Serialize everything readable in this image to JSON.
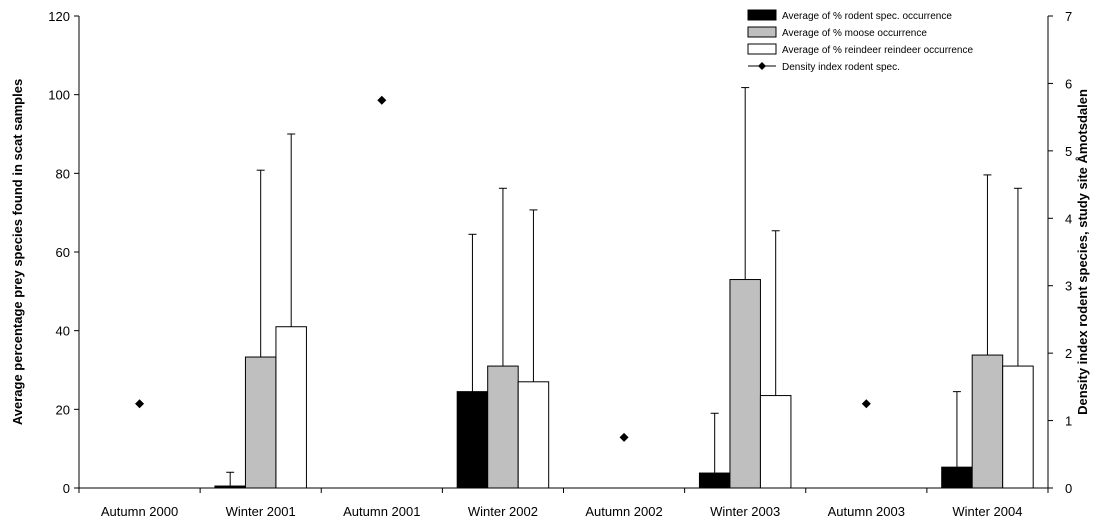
{
  "chart_data": {
    "type": "bar",
    "categories": [
      "Autumn 2000",
      "Winter 2001",
      "Autumn 2001",
      "Winter 2002",
      "Autumn 2002",
      "Winter 2003",
      "Autumn 2003",
      "Winter 2004"
    ],
    "series": [
      {
        "name": "Average of % rodent spec. occurrence",
        "axis": "left",
        "color": "#000000",
        "values": [
          null,
          0.5,
          null,
          24.5,
          null,
          3.8,
          null,
          5.3
        ],
        "error_upper": [
          null,
          4,
          null,
          64.5,
          null,
          19,
          null,
          24.5
        ]
      },
      {
        "name": "Average of % moose occurrence",
        "axis": "left",
        "color": "#bfbfbf",
        "values": [
          null,
          33.3,
          null,
          31,
          null,
          53,
          null,
          33.8
        ],
        "error_upper": [
          null,
          80.8,
          null,
          76.2,
          null,
          101.8,
          null,
          79.6
        ]
      },
      {
        "name": "Average of % reindeer reindeer occurrence",
        "axis": "left",
        "color": "#ffffff",
        "values": [
          null,
          41,
          null,
          27,
          null,
          23.5,
          null,
          31
        ],
        "error_upper": [
          null,
          90,
          null,
          70.7,
          null,
          65.4,
          null,
          76.2
        ]
      },
      {
        "name": "Density index rodent spec.",
        "axis": "right",
        "type": "scatter",
        "marker": "diamond",
        "values": [
          1.25,
          null,
          5.75,
          null,
          0.75,
          null,
          1.25,
          null
        ]
      }
    ],
    "ylabel": "Average percentage prey species found in scat samples",
    "ylim": [
      0,
      120
    ],
    "yticks": [
      "0",
      "20",
      "40",
      "60",
      "80",
      "100",
      "120"
    ],
    "y2label": "Density index rodent species, study site Åmotsdalen",
    "y2lim": [
      0,
      7
    ],
    "y2ticks": [
      "0",
      "1",
      "2",
      "3",
      "4",
      "5",
      "6",
      "7"
    ],
    "legend_position": "top-right",
    "grid": false
  }
}
